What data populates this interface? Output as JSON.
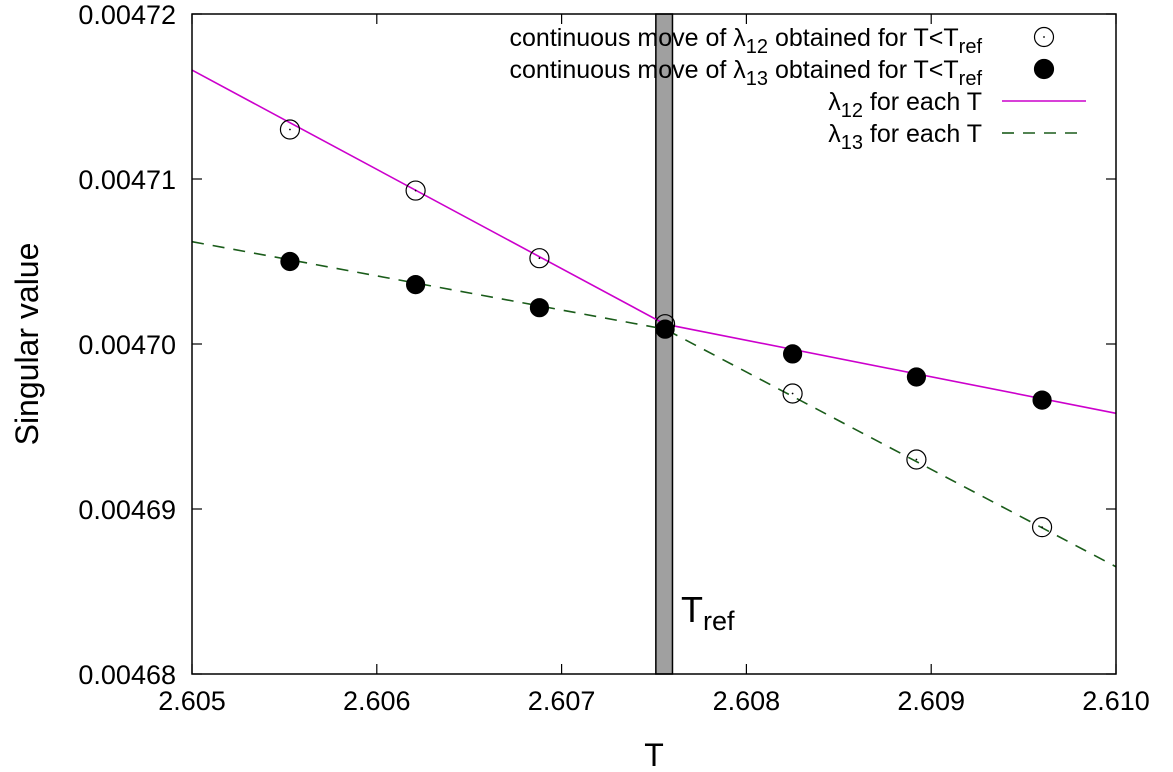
{
  "chart_data": {
    "type": "line",
    "xlabel": "T",
    "ylabel": "Singular value",
    "xlim": [
      2.605,
      2.61
    ],
    "ylim": [
      0.00468,
      0.00472
    ],
    "xticks": [
      2.605,
      2.606,
      2.607,
      2.608,
      2.609,
      2.61
    ],
    "xtick_labels": [
      "2.605",
      "2.606",
      "2.607",
      "2.608",
      "2.609",
      "2.610"
    ],
    "yticks": [
      0.00468,
      0.00469,
      0.0047,
      0.00471,
      0.00472
    ],
    "ytick_labels": [
      "0.00468",
      "0.00469",
      "0.00470",
      "0.00471",
      "0.00472"
    ],
    "grid": false,
    "legend_position": "top-right",
    "series": [
      {
        "name": "continuous move of λ12 obtained for T<Tref",
        "legend_parts": [
          "continuous move of λ",
          "12",
          " obtained for T<T",
          "ref"
        ],
        "style": "open-circle",
        "color": "#000000",
        "x": [
          2.60553,
          2.60621,
          2.60688,
          2.60756,
          2.60825,
          2.60892,
          2.6096
        ],
        "y": [
          0.004713,
          0.0047093,
          0.0047052,
          0.0047012,
          0.004697,
          0.004693,
          0.0046889
        ]
      },
      {
        "name": "continuous move of λ13 obtained for T<Tref",
        "legend_parts": [
          "continuous move of λ",
          "13",
          " obtained for T<T",
          "ref"
        ],
        "style": "filled-circle",
        "color": "#000000",
        "x": [
          2.60553,
          2.60621,
          2.60688,
          2.60756,
          2.60825,
          2.60892,
          2.6096
        ],
        "y": [
          0.004705,
          0.0047036,
          0.0047022,
          0.0047009,
          0.0046994,
          0.004698,
          0.0046966
        ]
      },
      {
        "name": "λ12 for each T",
        "legend_parts": [
          "λ",
          "12",
          " for each T"
        ],
        "style": "solid-line",
        "color": "#cc00cc",
        "x": [
          2.605,
          2.60756,
          2.61
        ],
        "y": [
          0.0047166,
          0.0047012,
          0.0046958
        ]
      },
      {
        "name": "λ13 for each T",
        "legend_parts": [
          "λ",
          "13",
          " for each T"
        ],
        "style": "dashed-line",
        "color": "#1a5c1a",
        "x": [
          2.605,
          2.60756,
          2.61
        ],
        "y": [
          0.0047062,
          0.0047009,
          0.0046865
        ]
      }
    ],
    "annotation": {
      "band_x": [
        2.60751,
        2.6076
      ],
      "band_color": "#a0a0a0",
      "label_main": "T",
      "label_sub": "ref"
    }
  }
}
